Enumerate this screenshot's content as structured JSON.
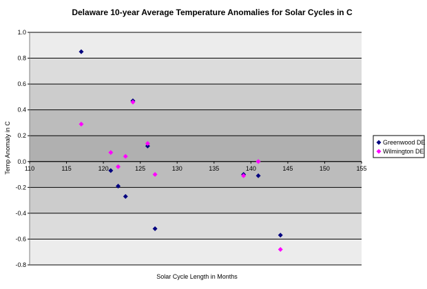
{
  "chart_data": {
    "type": "scatter",
    "title": "Delaware 10-year Average Temperature Anomalies for Solar Cycles in C",
    "xlabel": "Solar Cycle Length in Months",
    "ylabel": "Temp Anomaly in C",
    "xlim": [
      110,
      155
    ],
    "ylim": [
      -0.8,
      1.0
    ],
    "x_ticks": [
      "110",
      "115",
      "120",
      "125",
      "130",
      "135",
      "140",
      "145",
      "150",
      "155"
    ],
    "y_ticks": [
      "1.0",
      "0.8",
      "0.6",
      "0.4",
      "0.2",
      "0.0",
      "-0.2",
      "-0.4",
      "-0.6",
      "-0.8"
    ],
    "grid": "horizontal",
    "plot_background": "banded-gray",
    "legend_position": "right",
    "series": [
      {
        "name": "Greenwood DE",
        "color": "#00007F",
        "marker": "diamond",
        "points": [
          {
            "x": 117,
            "y": 0.85
          },
          {
            "x": 121,
            "y": -0.07
          },
          {
            "x": 122,
            "y": -0.19
          },
          {
            "x": 123,
            "y": -0.27
          },
          {
            "x": 124,
            "y": 0.47
          },
          {
            "x": 126,
            "y": 0.12
          },
          {
            "x": 127,
            "y": -0.52
          },
          {
            "x": 139,
            "y": -0.1
          },
          {
            "x": 141,
            "y": -0.11
          },
          {
            "x": 144,
            "y": -0.57
          }
        ]
      },
      {
        "name": "Wilmington DE",
        "color": "#FF00FF",
        "marker": "diamond",
        "points": [
          {
            "x": 117,
            "y": 0.29
          },
          {
            "x": 121,
            "y": 0.07
          },
          {
            "x": 122,
            "y": -0.04
          },
          {
            "x": 123,
            "y": 0.04
          },
          {
            "x": 124,
            "y": 0.46
          },
          {
            "x": 126,
            "y": 0.14
          },
          {
            "x": 127,
            "y": -0.1
          },
          {
            "x": 139,
            "y": -0.11
          },
          {
            "x": 141,
            "y": 0.0
          },
          {
            "x": 144,
            "y": -0.68
          }
        ]
      }
    ]
  }
}
